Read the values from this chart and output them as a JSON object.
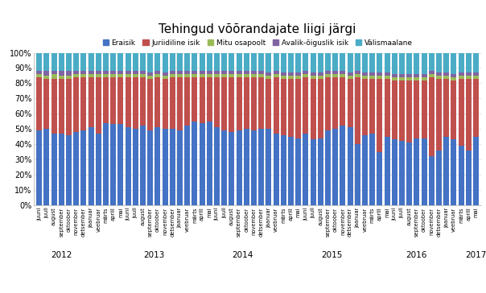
{
  "title": "Tehingud võõrandajate liigi järgi",
  "legend_labels": [
    "Eraisik",
    "Juriidiline isik",
    "Mitu osapoolt",
    "Avalik-õiguslik isik",
    "Välismaalane"
  ],
  "colors": [
    "#4472C4",
    "#C0504D",
    "#9BBB59",
    "#8064A2",
    "#4BACC6"
  ],
  "year_labels": [
    "2012",
    "2013",
    "2014",
    "2015",
    "2016",
    "2017"
  ],
  "months": [
    "juuni",
    "juuli",
    "august",
    "september",
    "oktoober",
    "november",
    "detsember",
    "jaanuar",
    "veebruar",
    "märts",
    "aprill",
    "mai",
    "juuni",
    "juuli",
    "august",
    "september",
    "oktoober",
    "november",
    "detsember",
    "jaanuar",
    "veebruar",
    "märts",
    "aprill",
    "mai",
    "juuni",
    "juuli",
    "august",
    "september",
    "oktoober",
    "november",
    "detsember",
    "jaanuar",
    "veebruar",
    "märts",
    "aprill",
    "mai",
    "juuni",
    "juuli",
    "august",
    "september",
    "oktoober",
    "november",
    "detsember",
    "jaanuar",
    "veebruar",
    "märts",
    "aprill",
    "mai",
    "juuni",
    "juuli",
    "august",
    "september",
    "oktoober",
    "november",
    "detsember",
    "jaanuar",
    "veebruar",
    "märts",
    "aprill",
    "mai"
  ],
  "data": {
    "Eraisik": [
      49,
      50,
      47,
      47,
      46,
      48,
      49,
      51,
      47,
      54,
      53,
      53,
      51,
      50,
      52,
      49,
      51,
      50,
      50,
      49,
      52,
      55,
      54,
      55,
      51,
      49,
      48,
      49,
      50,
      49,
      50,
      50,
      47,
      46,
      45,
      44,
      47,
      43,
      44,
      49,
      50,
      52,
      51,
      40,
      46,
      47,
      35,
      45,
      43,
      42,
      41,
      44,
      44,
      32,
      36,
      45,
      43,
      39,
      36,
      45
    ],
    "Juriidiline isik": [
      35,
      33,
      36,
      36,
      37,
      36,
      35,
      33,
      37,
      30,
      31,
      31,
      33,
      34,
      32,
      34,
      33,
      33,
      34,
      35,
      32,
      29,
      30,
      29,
      33,
      35,
      36,
      35,
      34,
      35,
      34,
      33,
      37,
      37,
      38,
      39,
      37,
      40,
      39,
      35,
      34,
      32,
      32,
      44,
      37,
      36,
      48,
      38,
      39,
      40,
      41,
      38,
      38,
      52,
      47,
      38,
      39,
      44,
      47,
      38
    ],
    "Mitu osapoolt": [
      2,
      2,
      3,
      2,
      2,
      2,
      2,
      2,
      2,
      2,
      2,
      2,
      2,
      2,
      2,
      2,
      2,
      2,
      2,
      2,
      2,
      2,
      2,
      2,
      2,
      2,
      2,
      2,
      2,
      2,
      2,
      2,
      2,
      2,
      2,
      2,
      2,
      2,
      2,
      2,
      2,
      2,
      2,
      2,
      2,
      2,
      2,
      2,
      2,
      2,
      2,
      2,
      2,
      2,
      2,
      2,
      2,
      2,
      2,
      2
    ],
    "Avalik-õiguslik isik": [
      2,
      3,
      2,
      3,
      3,
      2,
      2,
      2,
      2,
      2,
      2,
      2,
      2,
      2,
      2,
      2,
      2,
      2,
      2,
      2,
      2,
      2,
      2,
      2,
      2,
      2,
      2,
      2,
      2,
      2,
      2,
      2,
      2,
      2,
      2,
      2,
      2,
      2,
      2,
      2,
      2,
      2,
      2,
      2,
      2,
      2,
      2,
      2,
      2,
      2,
      2,
      2,
      2,
      2,
      2,
      2,
      2,
      2,
      2,
      2
    ],
    "Välismaalane": [
      12,
      12,
      12,
      12,
      12,
      12,
      12,
      12,
      12,
      12,
      12,
      12,
      12,
      12,
      12,
      13,
      12,
      13,
      12,
      12,
      12,
      12,
      12,
      12,
      12,
      12,
      12,
      12,
      12,
      12,
      12,
      13,
      12,
      13,
      13,
      13,
      12,
      13,
      13,
      12,
      12,
      12,
      13,
      12,
      13,
      13,
      13,
      13,
      14,
      14,
      14,
      14,
      14,
      12,
      13,
      13,
      14,
      13,
      13,
      13
    ]
  },
  "background_color": "#FFFFFF",
  "plot_background": "#FFFFFF",
  "gridcolor": "#D3D3D3"
}
